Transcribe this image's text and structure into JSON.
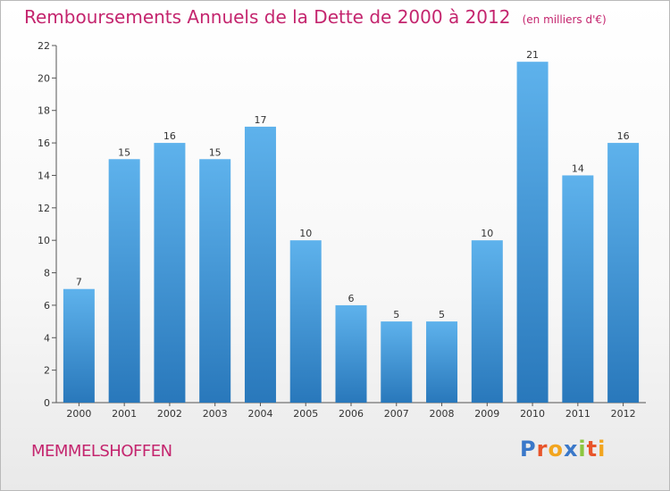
{
  "header": {
    "title": "Remboursements Annuels de la Dette de 2000 à 2012",
    "unit": "(en milliers d'€)"
  },
  "commune": "MEMMELSHOFFEN",
  "logo": {
    "letters": [
      "P",
      "r",
      "o",
      "x",
      "i",
      "t",
      "i"
    ]
  },
  "colors": {
    "bar_top": "#5eb2ec",
    "bar_bottom": "#2978bb",
    "title": "#c4256e",
    "axis": "#555555"
  },
  "chart_data": {
    "type": "bar",
    "title": "Remboursements Annuels de la Dette de 2000 à 2012",
    "subtitle": "(en milliers d'€)",
    "xlabel": "",
    "ylabel": "",
    "categories": [
      "2000",
      "2001",
      "2002",
      "2003",
      "2004",
      "2005",
      "2006",
      "2007",
      "2008",
      "2009",
      "2010",
      "2011",
      "2012"
    ],
    "values": [
      7,
      15,
      16,
      15,
      17,
      10,
      6,
      5,
      5,
      10,
      21,
      14,
      16
    ],
    "ylim": [
      0,
      22
    ],
    "yticks": [
      0,
      2,
      4,
      6,
      8,
      10,
      12,
      14,
      16,
      18,
      20,
      22
    ],
    "grid": false,
    "legend": "none"
  }
}
